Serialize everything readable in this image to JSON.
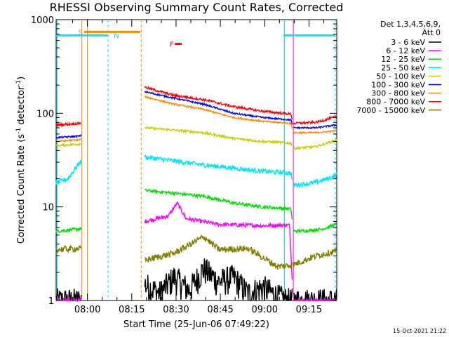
{
  "chart_data": {
    "type": "line",
    "title": "RHESSI Observing Summary Count Rates, Corrected",
    "xlabel": "Start Time (25-Jun-06 07:49:22)",
    "ylabel_main": "Corrected Count Rate (s",
    "ylabel_sup1": "-1",
    "ylabel_mid": " detector",
    "ylabel_sup2": "-1",
    "ylabel_end": ")",
    "yscale": "log",
    "ylim": [
      1,
      1000
    ],
    "xlim_minutes": [
      0,
      95
    ],
    "y_ticks": [
      {
        "v": 1,
        "label": "1"
      },
      {
        "v": 10,
        "label": "10"
      },
      {
        "v": 100,
        "label": "100"
      },
      {
        "v": 1000,
        "label": "1000"
      }
    ],
    "x_ticks": [
      {
        "t": 10.6,
        "label": "08:00"
      },
      {
        "t": 25.6,
        "label": "08:15"
      },
      {
        "t": 40.6,
        "label": "08:30"
      },
      {
        "t": 55.6,
        "label": "08:45"
      },
      {
        "t": 70.6,
        "label": "09:00"
      },
      {
        "t": 85.6,
        "label": "09:15"
      }
    ],
    "legend_header": [
      "Det 1,3,4,5,6,9,",
      "Att 0"
    ],
    "legend_placement": "right",
    "gaps_minutes": [
      [
        8.5,
        30.0
      ],
      [
        80.0,
        80.3
      ]
    ],
    "series": [
      {
        "name": "3 - 6 keV",
        "color": "#000000",
        "points": [
          [
            0,
            1
          ],
          [
            8,
            1
          ],
          [
            30,
            1.5
          ],
          [
            35,
            1.2
          ],
          [
            40,
            1.8
          ],
          [
            45,
            1.3
          ],
          [
            50,
            2.2
          ],
          [
            55,
            1.6
          ],
          [
            60,
            1.8
          ],
          [
            65,
            1.2
          ],
          [
            70,
            1.4
          ],
          [
            75,
            1.1
          ],
          [
            79,
            1
          ]
        ],
        "noise": 0.35
      },
      {
        "name": "6 - 12 keV",
        "color": "#ff00ff",
        "points": [
          [
            0,
            1
          ],
          [
            8,
            1
          ],
          [
            30,
            7
          ],
          [
            38,
            8
          ],
          [
            41,
            11
          ],
          [
            44,
            7.5
          ],
          [
            55,
            6.5
          ],
          [
            70,
            6.3
          ],
          [
            79,
            6.4
          ],
          [
            80.3,
            1
          ],
          [
            95,
            1
          ]
        ],
        "noise": 0.05
      },
      {
        "name": "12 - 25 keV",
        "color": "#00dd00",
        "points": [
          [
            0,
            5.5
          ],
          [
            8,
            5.8
          ],
          [
            30,
            15
          ],
          [
            40,
            14
          ],
          [
            50,
            13
          ],
          [
            60,
            11
          ],
          [
            70,
            10
          ],
          [
            79.5,
            9.5
          ],
          [
            80.3,
            5.5
          ],
          [
            86,
            5.6
          ],
          [
            90,
            5.8
          ],
          [
            95,
            6.5
          ]
        ],
        "noise": 0.04
      },
      {
        "name": "25 - 50 keV",
        "color": "#00e5ff",
        "points": [
          [
            0,
            18
          ],
          [
            4,
            20
          ],
          [
            8,
            30
          ],
          [
            30,
            34
          ],
          [
            40,
            31
          ],
          [
            50,
            28
          ],
          [
            60,
            26
          ],
          [
            70,
            24
          ],
          [
            79.5,
            23
          ],
          [
            80.3,
            17
          ],
          [
            87,
            18
          ],
          [
            92,
            20
          ],
          [
            95,
            22
          ]
        ],
        "noise": 0.06
      },
      {
        "name": "50 - 100 keV",
        "color": "#cccc00",
        "points": [
          [
            0,
            45
          ],
          [
            8,
            47
          ],
          [
            30,
            70
          ],
          [
            40,
            66
          ],
          [
            50,
            62
          ],
          [
            60,
            54
          ],
          [
            70,
            50
          ],
          [
            79.5,
            48
          ],
          [
            80.3,
            42
          ],
          [
            88,
            44
          ],
          [
            95,
            52
          ]
        ],
        "noise": 0.03
      },
      {
        "name": "100 - 300 keV",
        "color": "#0000ff",
        "points": [
          [
            0,
            55
          ],
          [
            8,
            57
          ],
          [
            30,
            170
          ],
          [
            40,
            145
          ],
          [
            50,
            125
          ],
          [
            60,
            100
          ],
          [
            70,
            90
          ],
          [
            79.5,
            85
          ],
          [
            80.3,
            70
          ],
          [
            88,
            70
          ],
          [
            95,
            75
          ]
        ],
        "noise": 0.02
      },
      {
        "name": "300 - 800 keV",
        "color": "#ff8c00",
        "points": [
          [
            0,
            50
          ],
          [
            8,
            52
          ],
          [
            30,
            150
          ],
          [
            40,
            125
          ],
          [
            50,
            110
          ],
          [
            60,
            90
          ],
          [
            70,
            82
          ],
          [
            79.5,
            78
          ],
          [
            80.3,
            62
          ],
          [
            88,
            62
          ],
          [
            95,
            65
          ]
        ],
        "noise": 0.02
      },
      {
        "name": "800 - 7000 keV",
        "color": "#ff0000",
        "points": [
          [
            0,
            75
          ],
          [
            8,
            78
          ],
          [
            30,
            190
          ],
          [
            40,
            155
          ],
          [
            50,
            140
          ],
          [
            60,
            118
          ],
          [
            70,
            105
          ],
          [
            79.5,
            98
          ],
          [
            80.3,
            78
          ],
          [
            88,
            80
          ],
          [
            95,
            92
          ]
        ],
        "noise": 0.03
      },
      {
        "name": "7000 - 15000 keV",
        "color": "#808000",
        "points": [
          [
            0,
            3.5
          ],
          [
            8,
            3.6
          ],
          [
            30,
            2.7
          ],
          [
            40,
            3.2
          ],
          [
            50,
            4.8
          ],
          [
            55,
            3.5
          ],
          [
            65,
            3.6
          ],
          [
            75,
            2.3
          ],
          [
            80,
            2.4
          ],
          [
            88,
            3
          ],
          [
            95,
            3.4
          ]
        ],
        "noise": 0.08
      }
    ],
    "flag_markers": [
      {
        "label": "S",
        "color": "#ff8c00",
        "label_t": 7.5,
        "y": 740,
        "segment_minutes": [
          9.5,
          28.5
        ]
      },
      {
        "label": "N",
        "color": "#00e5ff",
        "label_t": 19.5,
        "y": 680,
        "segment_minutes": [
          0,
          17.5
        ]
      },
      {
        "label": "F",
        "color": "#ff0000",
        "label_t": 38.5,
        "y": 550,
        "segment_minutes": [
          40.2,
          42.5
        ]
      },
      {
        "label": "",
        "color": "#00e5ff",
        "label_t": 0,
        "y": 680,
        "segment_minutes": [
          77,
          94.5
        ]
      }
    ],
    "vertical_lines": [
      {
        "t": 0.3,
        "color": "#00e5ff",
        "style": "solid"
      },
      {
        "t": 8.7,
        "color": "#ff8c00",
        "style": "solid"
      },
      {
        "t": 10.6,
        "color": "#ff8c00",
        "style": "solid"
      },
      {
        "t": 17.6,
        "color": "#00e5ff",
        "style": "dashed"
      },
      {
        "t": 28.8,
        "color": "#ff8c00",
        "style": "dashed"
      },
      {
        "t": 77.3,
        "color": "#00e5ff",
        "style": "solid"
      },
      {
        "t": 80.3,
        "color": "#ff00ff",
        "style": "solid"
      },
      {
        "t": 94.5,
        "color": "#00e5ff",
        "style": "dashed"
      }
    ]
  },
  "footer": {
    "timestamp": "15-Oct-2021 21:22"
  }
}
